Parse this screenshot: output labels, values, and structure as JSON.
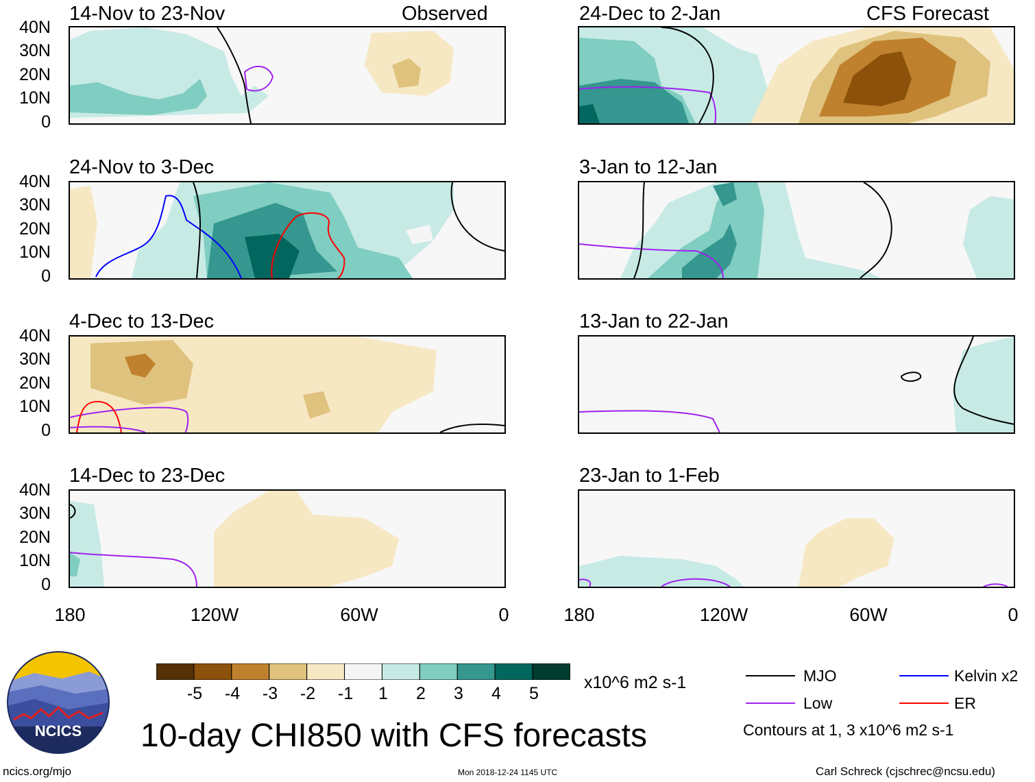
{
  "title": "10-day CHI850 with CFS forecasts",
  "observed_label": "Observed",
  "forecast_label": "CFS Forecast",
  "lat_labels": [
    "40N",
    "30N",
    "20N",
    "10N",
    "0"
  ],
  "lon_labels": [
    "180",
    "120W",
    "60W",
    "0"
  ],
  "panels_left": [
    {
      "label": "14-Nov to 23-Nov"
    },
    {
      "label": "24-Nov to 3-Dec"
    },
    {
      "label": "4-Dec to 13-Dec"
    },
    {
      "label": "14-Dec to 23-Dec"
    }
  ],
  "panels_right": [
    {
      "label": "24-Dec to 2-Jan"
    },
    {
      "label": "3-Jan to 12-Jan"
    },
    {
      "label": "13-Jan to 22-Jan"
    },
    {
      "label": "23-Jan to 1-Feb"
    }
  ],
  "colorbar": {
    "colors": [
      "#543005",
      "#8c510a",
      "#bf812d",
      "#dfc27d",
      "#f6e8c3",
      "#f5f5f5",
      "#c7eae5",
      "#80cdc1",
      "#35978f",
      "#01665e",
      "#003c30"
    ],
    "ticks": [
      "-5",
      "-4",
      "-3",
      "-2",
      "-1",
      "1",
      "2",
      "3",
      "4",
      "5"
    ],
    "units": "x10^6 m2 s-1"
  },
  "legend": {
    "items": [
      {
        "label": "MJO",
        "color": "#000000"
      },
      {
        "label": "Kelvin x2",
        "color": "#0000ff"
      },
      {
        "label": "Low",
        "color": "#a020f0"
      },
      {
        "label": "ER",
        "color": "#ff0000"
      }
    ],
    "note": "Contours at 1, 3 x10^6 m2 s-1"
  },
  "logo_text": "NCICS",
  "footer": {
    "url": "ncics.org/mjo",
    "timestamp": "Mon 2018-12-24 1145 UTC",
    "credit": "Carl Schreck (cjschrec@ncsu.edu)"
  }
}
